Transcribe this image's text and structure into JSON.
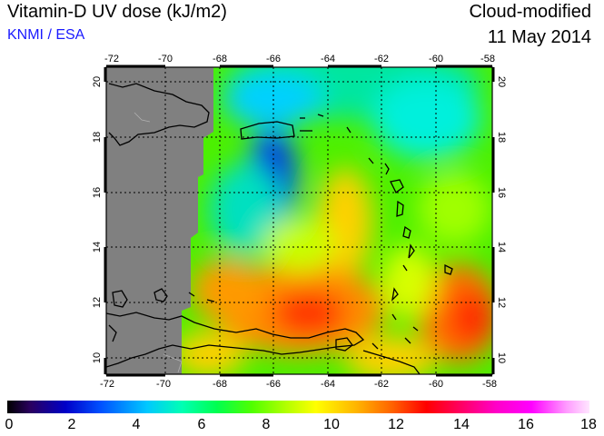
{
  "header": {
    "title": "Vitamin-D UV dose (kJ/m2)",
    "source": "KNMI / ESA",
    "mode": "Cloud-modified",
    "date": "11 May 2014"
  },
  "map": {
    "lon_labels": [
      "-72",
      "-70",
      "-68",
      "-66",
      "-64",
      "-62",
      "-60",
      "-58"
    ],
    "lat_labels": [
      "10",
      "12",
      "14",
      "16",
      "18",
      "20"
    ],
    "colors": {
      "no_data": "#808080",
      "coastline": "#000000",
      "grid": "#000000"
    }
  },
  "colorbar": {
    "ticks": [
      "0",
      "2",
      "4",
      "6",
      "8",
      "10",
      "12",
      "14",
      "16",
      "18"
    ]
  }
}
